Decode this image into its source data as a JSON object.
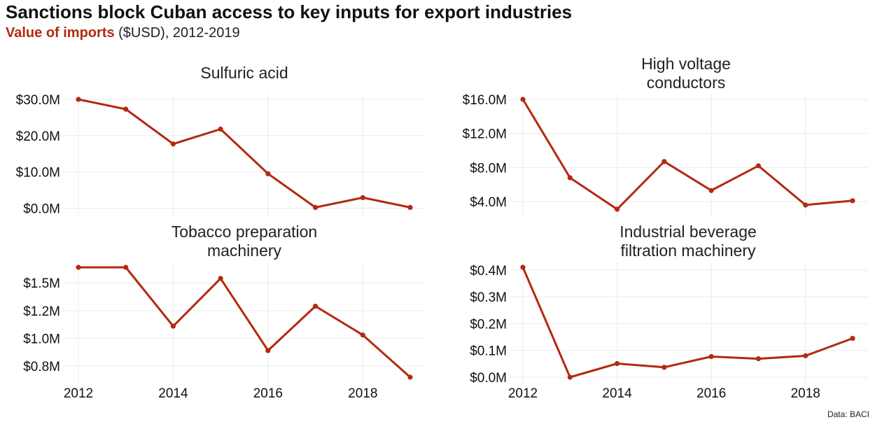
{
  "header": {
    "title": "Sanctions block Cuban access to key inputs for export industries",
    "subtitle_highlight": "Value of imports",
    "subtitle_rest": " ($USD), 2012-2019"
  },
  "source": "Data: BACI",
  "colors": {
    "series": "#b22a0f",
    "grid": "#ebebeb"
  },
  "chart_data": [
    {
      "type": "line",
      "title": [
        "Sulfuric acid"
      ],
      "x": [
        2012,
        2013,
        2014,
        2015,
        2016,
        2017,
        2018,
        2019
      ],
      "values": [
        30.0,
        27.3,
        17.7,
        21.8,
        9.5,
        0.2,
        2.9,
        0.2
      ],
      "unit": "M",
      "ylim": [
        -0.3,
        30.0
      ],
      "yticks": [
        0,
        10,
        20,
        30
      ],
      "ytick_labels": [
        "$0.0M",
        "$10.0M",
        "$20.0M",
        "$30.0M"
      ],
      "xticks": [
        2012,
        2014,
        2016,
        2018
      ],
      "xtick_labels": [],
      "grid": true
    },
    {
      "type": "line",
      "title": [
        "High voltage",
        "conductors"
      ],
      "x": [
        2012,
        2013,
        2014,
        2015,
        2016,
        2017,
        2018,
        2019
      ],
      "values": [
        16.0,
        6.8,
        3.1,
        8.7,
        5.3,
        8.2,
        3.6,
        4.1
      ],
      "unit": "M",
      "ylim": [
        3.1,
        16.0
      ],
      "yticks": [
        4,
        8,
        12,
        16
      ],
      "ytick_labels": [
        "$4.0M",
        "$8.0M",
        "$12.0M",
        "$16.0M"
      ],
      "xticks": [
        2012,
        2014,
        2016,
        2018
      ],
      "xtick_labels": [],
      "grid": true
    },
    {
      "type": "line",
      "title": [
        "Tobacco preparation",
        "machinery"
      ],
      "x": [
        2012,
        2013,
        2014,
        2015,
        2016,
        2017,
        2018,
        2019
      ],
      "values": [
        1.64,
        1.64,
        1.11,
        1.54,
        0.89,
        1.29,
        1.03,
        0.65
      ],
      "unit": "M",
      "ylim": [
        0.65,
        1.64
      ],
      "yticks": [
        0.75,
        1.0,
        1.25,
        1.5
      ],
      "ytick_labels": [
        "$0.8M",
        "$1.0M",
        "$1.2M",
        "$1.5M"
      ],
      "xticks": [
        2012,
        2014,
        2016,
        2018
      ],
      "xtick_labels": [
        "2012",
        "2014",
        "2016",
        "2018"
      ],
      "grid": true
    },
    {
      "type": "line",
      "title": [
        "Industrial beverage",
        "filtration machinery"
      ],
      "x": [
        2012,
        2013,
        2014,
        2015,
        2016,
        2017,
        2018,
        2019
      ],
      "values": [
        0.41,
        0.0,
        0.051,
        0.037,
        0.077,
        0.069,
        0.08,
        0.145
      ],
      "unit": "M",
      "ylim": [
        0.0,
        0.41
      ],
      "yticks": [
        0.0,
        0.1,
        0.2,
        0.3,
        0.4
      ],
      "ytick_labels": [
        "$0.0M",
        "$0.1M",
        "$0.2M",
        "$0.3M",
        "$0.4M"
      ],
      "xticks": [
        2012,
        2014,
        2016,
        2018
      ],
      "xtick_labels": [
        "2012",
        "2014",
        "2016",
        "2018"
      ],
      "grid": true
    }
  ]
}
